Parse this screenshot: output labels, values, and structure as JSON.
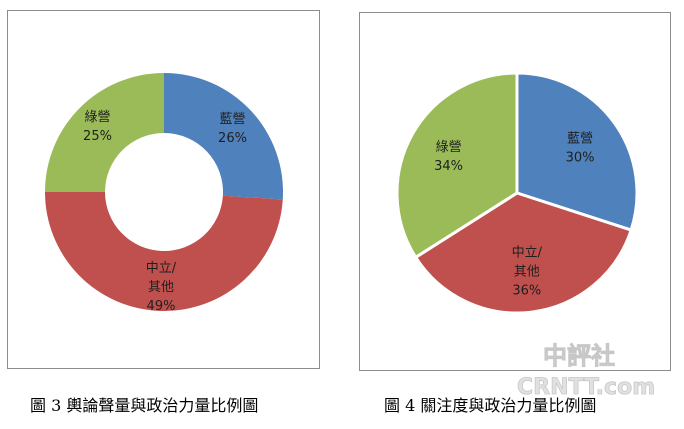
{
  "chart_data": [
    {
      "type": "pie",
      "variant": "donut",
      "title": "",
      "slices": [
        {
          "label": [
            "藍營"
          ],
          "value_label": "26%",
          "value": 26,
          "color": "#4f81bd"
        },
        {
          "label": [
            "中立/",
            "其他"
          ],
          "value_label": "49%",
          "value": 49,
          "color": "#c0504d"
        },
        {
          "label": [
            "綠營"
          ],
          "value_label": "25%",
          "value": 25,
          "color": "#9bbb59"
        }
      ]
    },
    {
      "type": "pie",
      "variant": "pie",
      "title": "",
      "slices": [
        {
          "label": [
            "藍營"
          ],
          "value_label": "30%",
          "value": 30,
          "color": "#4f81bd"
        },
        {
          "label": [
            "中立/",
            "其他"
          ],
          "value_label": "36%",
          "value": 36,
          "color": "#c0504d"
        },
        {
          "label": [
            "綠營"
          ],
          "value_label": "34%",
          "value": 34,
          "color": "#9bbb59"
        }
      ]
    }
  ],
  "captions": {
    "chart1": "圖 3  輿論聲量與政治力量比例圖",
    "chart2": "圖 4  關注度與政治力量比例圖"
  },
  "watermark": {
    "chinese": "中評社",
    "latin": "CRNTT.com"
  }
}
